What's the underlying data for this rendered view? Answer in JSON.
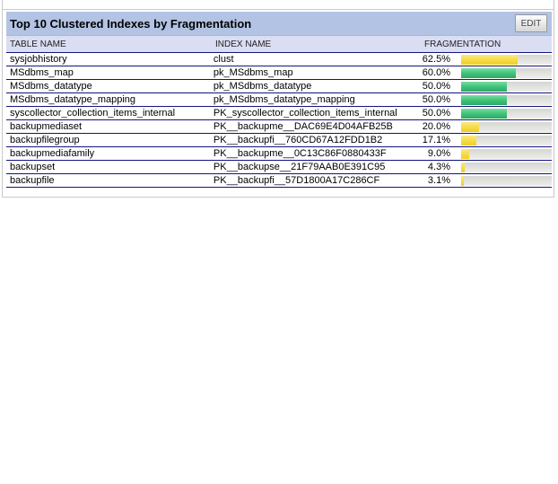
{
  "widget": {
    "title": "Top 10 Clustered Indexes by Fragmentation",
    "edit_label": "EDIT"
  },
  "table": {
    "columns": [
      "TABLE NAME",
      "INDEX NAME",
      "FRAGMENTATION"
    ],
    "rows": [
      {
        "table_name": "sysjobhistory",
        "index_name": "clust",
        "fragmentation": "62.5%",
        "value": 62.5,
        "bar_color": "yellow"
      },
      {
        "table_name": "MSdbms_map",
        "index_name": "pk_MSdbms_map",
        "fragmentation": "60.0%",
        "value": 60.0,
        "bar_color": "green"
      },
      {
        "table_name": "MSdbms_datatype",
        "index_name": "pk_MSdbms_datatype",
        "fragmentation": "50.0%",
        "value": 50.0,
        "bar_color": "green"
      },
      {
        "table_name": "MSdbms_datatype_mapping",
        "index_name": "pk_MSdbms_datatype_mapping",
        "fragmentation": "50.0%",
        "value": 50.0,
        "bar_color": "green"
      },
      {
        "table_name": "syscollector_collection_items_internal",
        "index_name": "PK_syscollector_collection_items_internal",
        "fragmentation": "50.0%",
        "value": 50.0,
        "bar_color": "green"
      },
      {
        "table_name": "backupmediaset",
        "index_name": "PK__backupme__DAC69E4D04AFB25B",
        "fragmentation": "20.0%",
        "value": 20.0,
        "bar_color": "yellow"
      },
      {
        "table_name": "backupfilegroup",
        "index_name": "PK__backupfi__760CD67A12FDD1B2",
        "fragmentation": "17.1%",
        "value": 17.1,
        "bar_color": "yellow"
      },
      {
        "table_name": "backupmediafamily",
        "index_name": "PK__backupme__0C13C86F0880433F",
        "fragmentation": "9.0%",
        "value": 9.0,
        "bar_color": "yellow"
      },
      {
        "table_name": "backupset",
        "index_name": "PK__backupse__21F79AAB0E391C95",
        "fragmentation": "4.3%",
        "value": 4.3,
        "bar_color": "yellow"
      },
      {
        "table_name": "backupfile",
        "index_name": "PK__backupfi__57D1800A17C286CF",
        "fragmentation": "3.1%",
        "value": 3.1,
        "bar_color": "yellow"
      }
    ]
  },
  "colors": {
    "titlebar_bg": "#b3c3e4",
    "column_header_bg": "#dbddf3",
    "row_divider": "#14147e",
    "bar_yellow": "#f0ce1f",
    "bar_green": "#3fc47a",
    "bar_track": "#e0e0dc",
    "panel_border": "#c9c9c9"
  }
}
